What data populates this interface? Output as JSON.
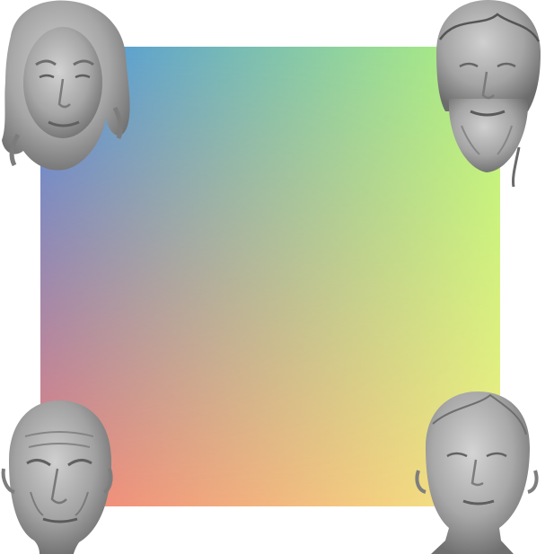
{
  "gradient": {
    "top_left": "#4a90e2",
    "top_right": "#b4f57a",
    "bottom_left": "#f0817a",
    "bottom_right": "#f4ec84"
  },
  "faces": [
    {
      "id": "top-left",
      "description": "female-head-sculpt-icon"
    },
    {
      "id": "top-right",
      "description": "bearded-male-head-sculpt-icon"
    },
    {
      "id": "bottom-left",
      "description": "elderly-male-head-sculpt-icon"
    },
    {
      "id": "bottom-right",
      "description": "young-female-head-sculpt-icon"
    }
  ],
  "sculpt_color": "#9a9a9a"
}
